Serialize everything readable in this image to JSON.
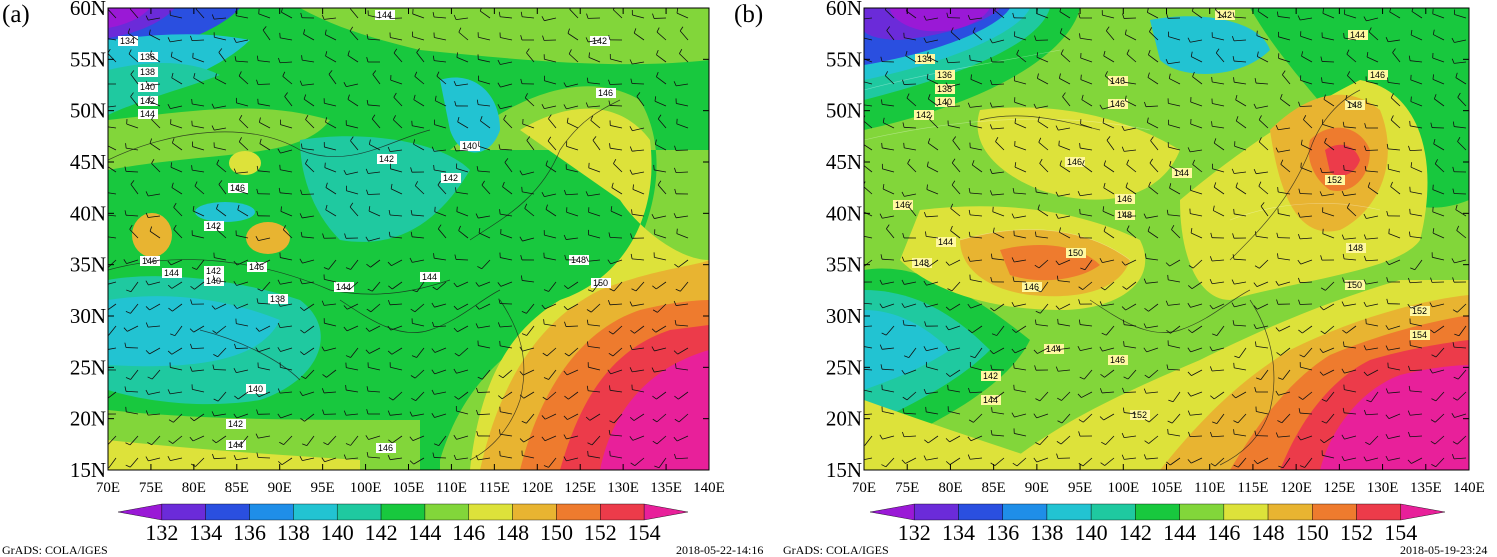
{
  "panels": [
    {
      "label": "(a)",
      "footer_left": "",
      "footer_right": "2018-05-22-14:16",
      "contour_labels": [
        "134",
        "136",
        "138",
        "140",
        "142",
        "144",
        "142",
        "144",
        "146",
        "142",
        "140",
        "142",
        "144",
        "146",
        "142",
        "146",
        "144",
        "142",
        "140",
        "146",
        "138",
        "144",
        "148",
        "150",
        "140",
        "142",
        "144",
        "146"
      ]
    },
    {
      "label": "(b)",
      "footer_left": "GrADS: COLA/IGES",
      "footer_right": "2018-05-19-23:24",
      "contour_labels": [
        "142",
        "144",
        "146",
        "134",
        "136",
        "138",
        "140",
        "142",
        "146",
        "146",
        "148",
        "146",
        "144",
        "146",
        "148",
        "152",
        "150",
        "148",
        "146",
        "144",
        "144",
        "146",
        "148",
        "146",
        "150",
        "152",
        "154",
        "152",
        "142",
        "144"
      ]
    }
  ],
  "footer_left_a": "GrADS: COLA/IGES",
  "lat_ticks": [
    "60N",
    "55N",
    "50N",
    "45N",
    "40N",
    "35N",
    "30N",
    "25N",
    "20N",
    "15N"
  ],
  "lon_ticks": [
    "70E",
    "75E",
    "80E",
    "85E",
    "90E",
    "95E",
    "100E",
    "105E",
    "110E",
    "115E",
    "120E",
    "125E",
    "130E",
    "135E",
    "140E"
  ],
  "colorbar": {
    "labels": [
      "132",
      "134",
      "136",
      "138",
      "140",
      "142",
      "144",
      "146",
      "148",
      "150",
      "152",
      "154"
    ],
    "colors": [
      "#9a19d6",
      "#6b2bd9",
      "#2a4fe0",
      "#1f8ee8",
      "#22c3d2",
      "#1fc9a0",
      "#18c83e",
      "#82d63a",
      "#dde23a",
      "#e8b431",
      "#ee7b2e",
      "#ec3b4a",
      "#e8209a"
    ]
  },
  "extent": {
    "lon": [
      70,
      140
    ],
    "lat": [
      15,
      60
    ]
  }
}
